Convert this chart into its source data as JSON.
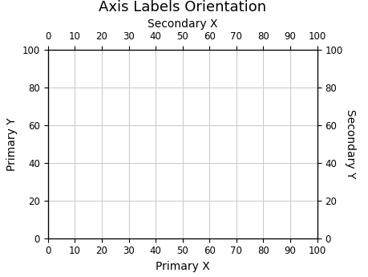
{
  "title": "Axis Labels Orientation",
  "primary_xlabel": "Primary X",
  "primary_ylabel": "Primary Y",
  "secondary_xlabel": "Secondary X",
  "secondary_ylabel": "Secondary Y",
  "xlim": [
    0,
    100
  ],
  "ylim": [
    0,
    100
  ],
  "xticks": [
    0,
    10,
    20,
    30,
    40,
    50,
    60,
    70,
    80,
    90,
    100
  ],
  "yticks": [
    0,
    20,
    40,
    60,
    80,
    100
  ],
  "grid_color": "#cccccc",
  "background_color": "#ffffff",
  "title_fontsize": 13,
  "label_fontsize": 10,
  "tick_fontsize": 8.5
}
